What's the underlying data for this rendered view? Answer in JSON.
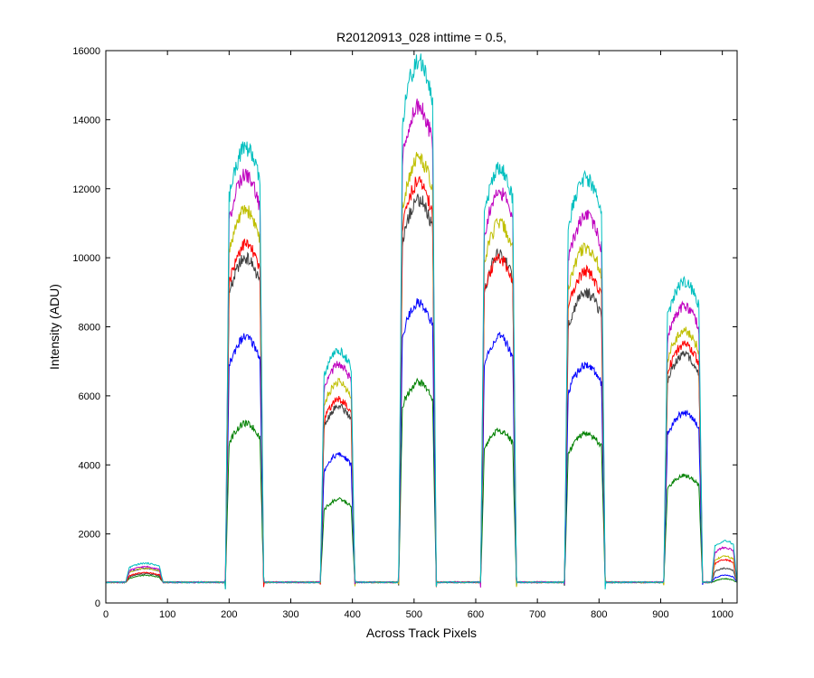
{
  "chart_data": {
    "type": "line",
    "title": "R20120913_028 inttime = 0.5,",
    "xlabel": "Across Track Pixels",
    "ylabel": "Intensity (ADU)",
    "xlim": [
      0,
      1024
    ],
    "ylim": [
      0,
      16000
    ],
    "xticks": [
      0,
      100,
      200,
      300,
      400,
      500,
      600,
      700,
      800,
      900,
      1000
    ],
    "yticks": [
      0,
      2000,
      4000,
      6000,
      8000,
      10000,
      12000,
      14000,
      16000
    ],
    "grid": false,
    "legend": "none",
    "baseline": 600,
    "segments": [
      {
        "start": 32,
        "end": 93
      },
      {
        "start": 194,
        "end": 256
      },
      {
        "start": 348,
        "end": 404
      },
      {
        "start": 475,
        "end": 536
      },
      {
        "start": 608,
        "end": 666
      },
      {
        "start": 744,
        "end": 810
      },
      {
        "start": 905,
        "end": 968
      },
      {
        "start": 982,
        "end": 1024
      }
    ],
    "series": [
      {
        "color": "#008000",
        "plateaus": [
          800,
          5200,
          3000,
          6400,
          5000,
          4900,
          3700,
          700
        ]
      },
      {
        "color": "#0000ff",
        "plateaus": [
          1000,
          7700,
          4300,
          8700,
          7700,
          6900,
          5500,
          800
        ]
      },
      {
        "color": "#404040",
        "plateaus": [
          850,
          10000,
          5700,
          11700,
          10100,
          9000,
          7200,
          1000
        ]
      },
      {
        "color": "#ff0000",
        "plateaus": [
          880,
          10400,
          5900,
          12200,
          10000,
          9600,
          7500,
          1250
        ]
      },
      {
        "color": "#bfbf00",
        "plateaus": [
          1000,
          11400,
          6400,
          12900,
          11000,
          10300,
          7900,
          1350
        ]
      },
      {
        "color": "#bf00bf",
        "plateaus": [
          1050,
          12400,
          6900,
          14400,
          11900,
          11200,
          8600,
          1600
        ]
      },
      {
        "color": "#00bfbf",
        "plateaus": [
          1150,
          13200,
          7300,
          15700,
          12600,
          12300,
          9300,
          1800
        ]
      }
    ]
  }
}
